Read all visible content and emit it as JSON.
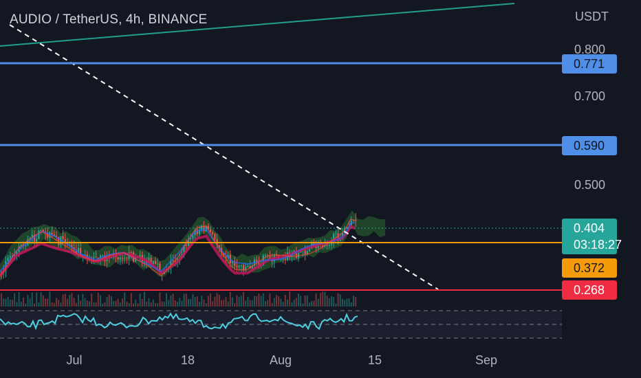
{
  "header": {
    "symbol_title": "AUDIO / TetherUS, 4h, BINANCE"
  },
  "price_axis": {
    "currency": "USDT",
    "ticks": [
      {
        "label": "0.800",
        "value": 0.8
      },
      {
        "label": "0.700",
        "value": 0.7
      },
      {
        "label": "0.500",
        "value": 0.5
      }
    ]
  },
  "time_axis": {
    "ticks": [
      {
        "label": "Jul"
      },
      {
        "label": "18"
      },
      {
        "label": "Aug"
      },
      {
        "label": "15"
      },
      {
        "label": "Sep"
      }
    ]
  },
  "price_tags": {
    "resistance_1": {
      "label": "0.771",
      "value": 0.771,
      "color": "#4f8fe8"
    },
    "resistance_2": {
      "label": "0.590",
      "value": 0.59,
      "color": "#4f8fe8"
    },
    "current": {
      "label": "0.404",
      "countdown": "03:18:27",
      "value": 0.404,
      "color": "#26a69a"
    },
    "support_1": {
      "label": "0.372",
      "value": 0.372,
      "color": "#f59b0b"
    },
    "support_2": {
      "label": "0.268",
      "value": 0.268,
      "color": "#ef2c42"
    }
  },
  "colors": {
    "background": "#131722",
    "up_candle": "#26a69a",
    "down_candle": "#ef5350",
    "trendline_dashed": "#ffffff",
    "trendline_upper": "#1fa08d",
    "rsi_line": "#4dd0e1",
    "cloud_green": "#2e7d32",
    "cloud_red": "#b71c1c",
    "ma_red": "#c2185b"
  }
}
